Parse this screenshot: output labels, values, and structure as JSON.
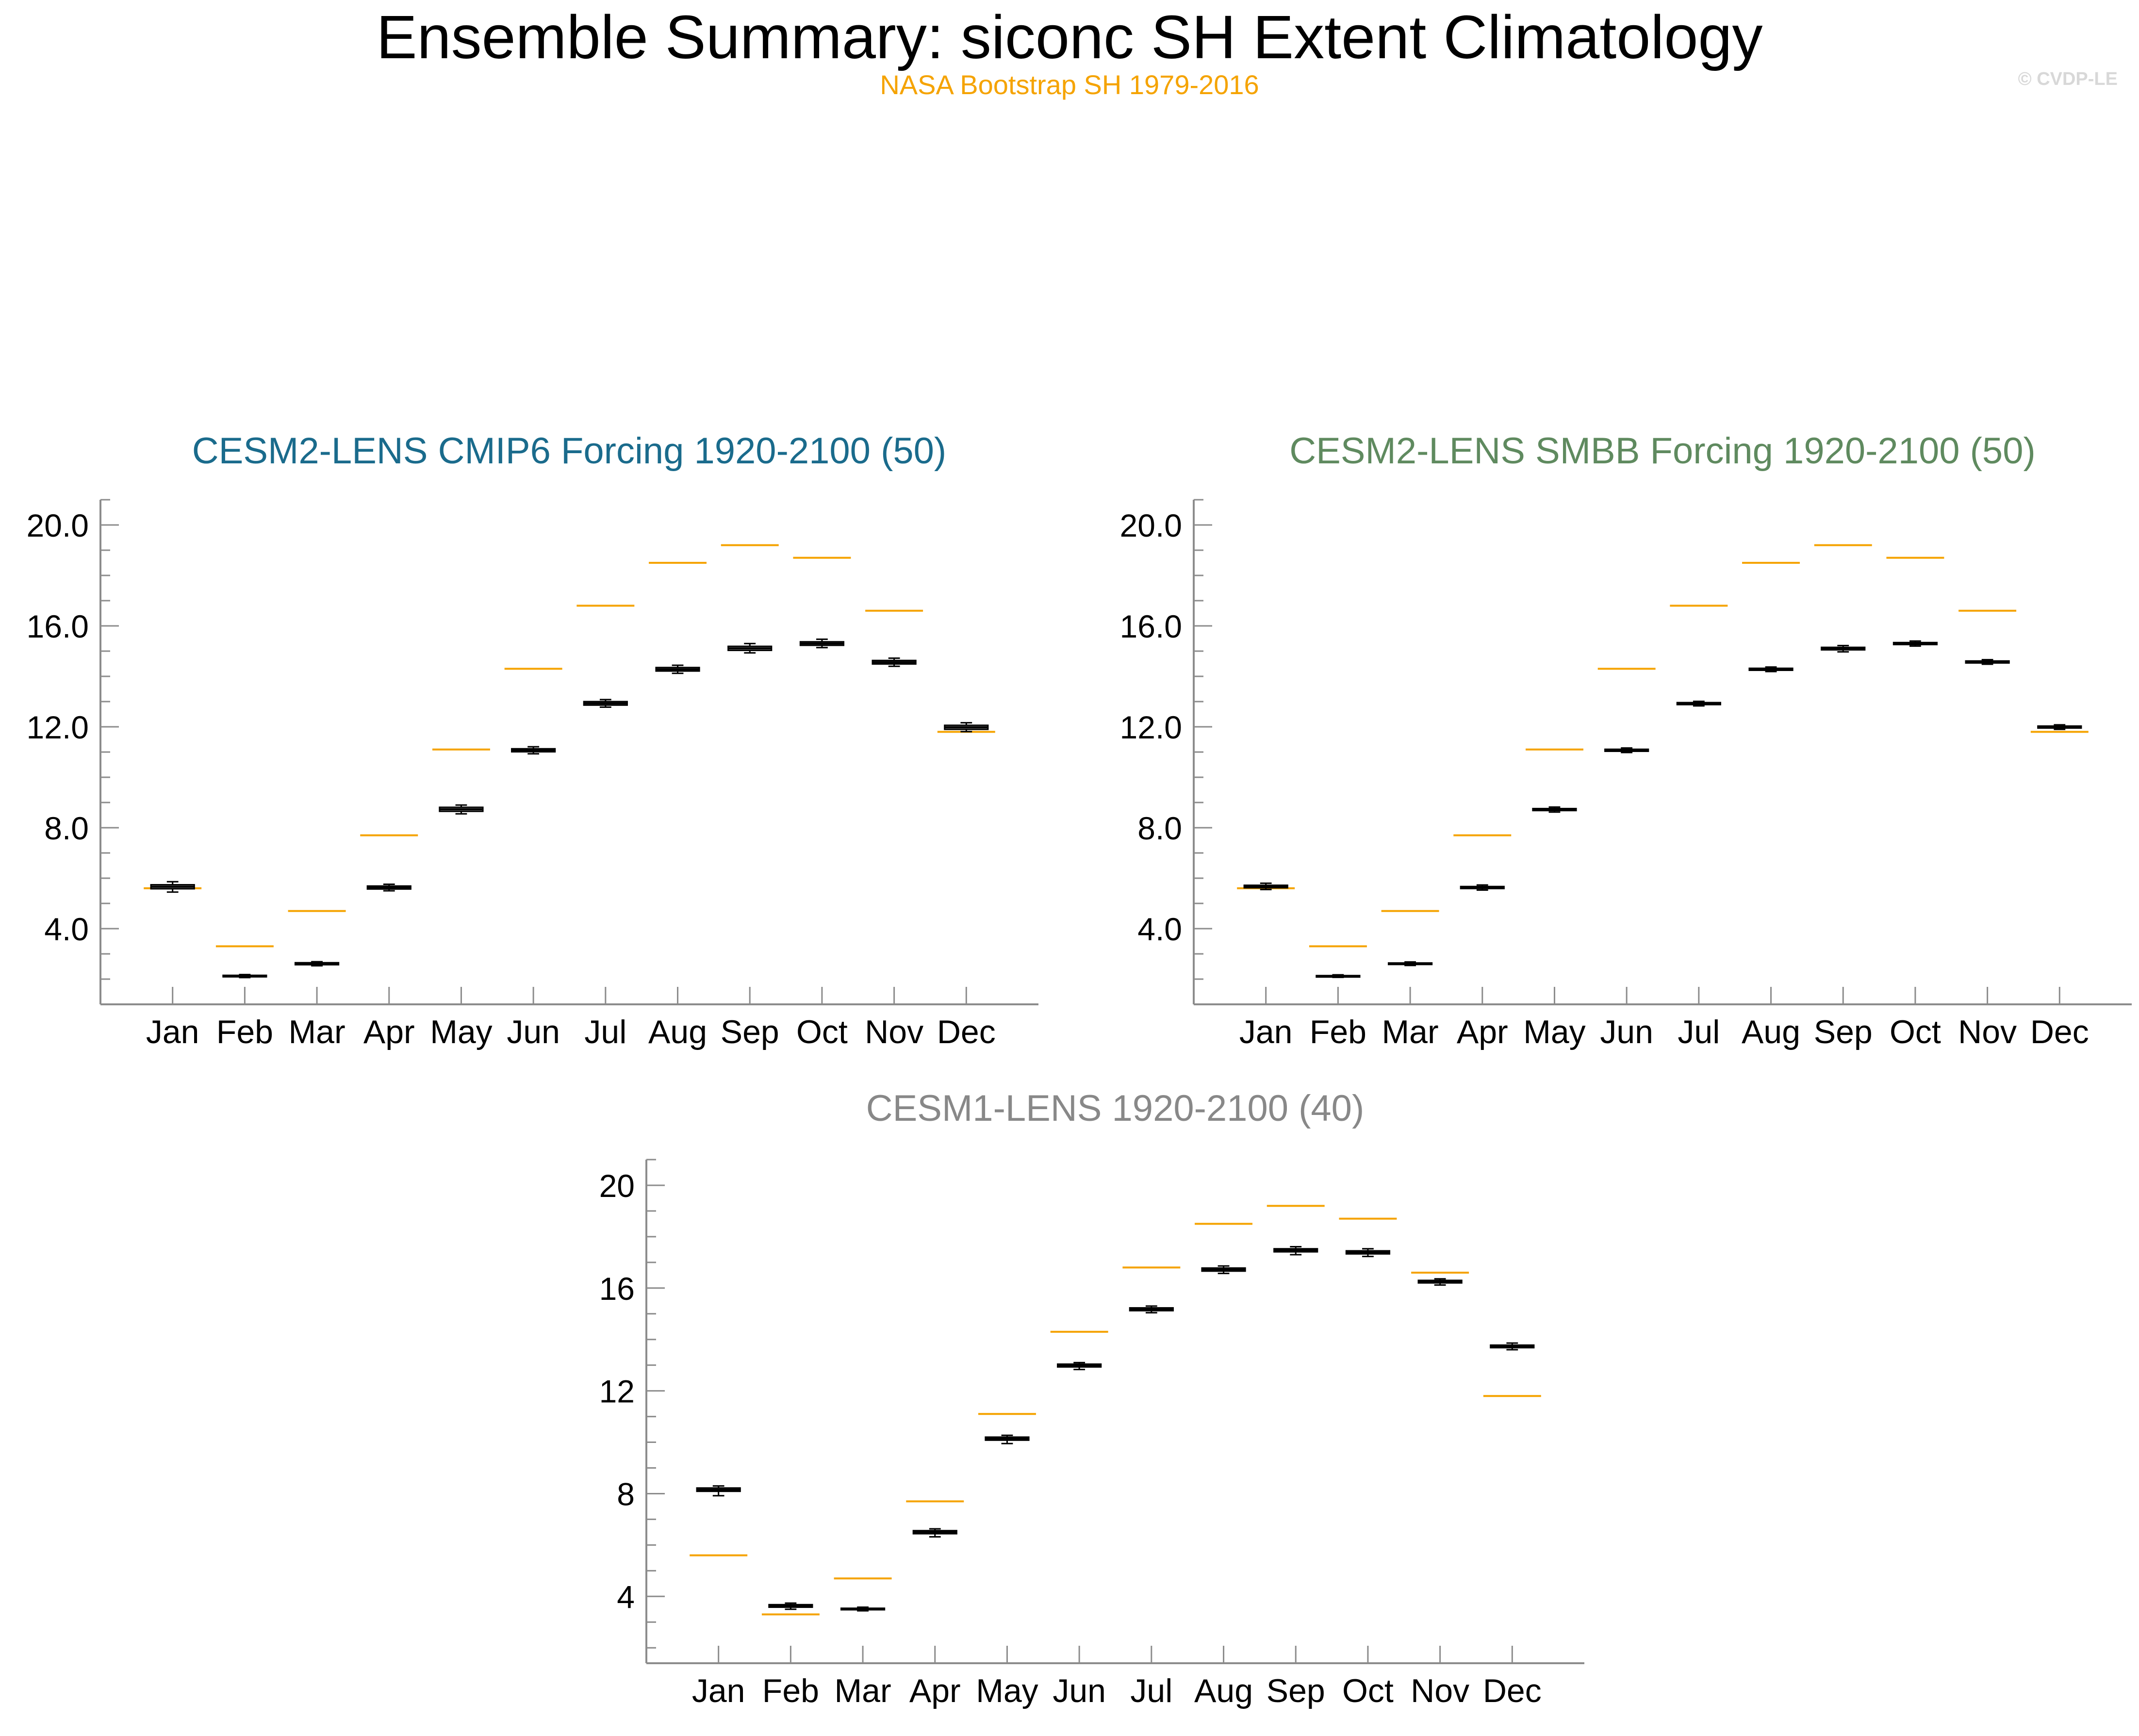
{
  "title": "Ensemble Summary: siconc SH Extent Climatology",
  "subtitle": "NASA Bootstrap SH 1979-2016",
  "copyright": "© CVDP-LE",
  "colors": {
    "observation": "#f5a300",
    "box_fill": "#8c8c8c",
    "box_edge": "#000000",
    "axis": "#8c8c8c"
  },
  "chart_data": [
    {
      "type": "box",
      "title": "CESM2-LENS CMIP6 Forcing 1920-2100 (50)",
      "title_color": "#1a6b8c",
      "categories": [
        "Jan",
        "Feb",
        "Mar",
        "Apr",
        "May",
        "Jun",
        "Jul",
        "Aug",
        "Sep",
        "Oct",
        "Nov",
        "Dec"
      ],
      "yticks": [
        "4.0",
        "8.0",
        "12.0",
        "16.0",
        "20.0"
      ],
      "ylim": [
        1.0,
        21.0
      ],
      "observation": [
        5.6,
        3.3,
        4.7,
        7.7,
        11.1,
        14.3,
        16.8,
        18.5,
        19.2,
        18.7,
        16.6,
        11.8
      ],
      "ensemble": [
        {
          "min": 5.45,
          "q1": 5.58,
          "median": 5.66,
          "q3": 5.74,
          "max": 5.86
        },
        {
          "min": 2.06,
          "q1": 2.09,
          "median": 2.12,
          "q3": 2.15,
          "max": 2.18
        },
        {
          "min": 2.53,
          "q1": 2.57,
          "median": 2.61,
          "q3": 2.65,
          "max": 2.69
        },
        {
          "min": 5.5,
          "q1": 5.57,
          "median": 5.63,
          "q3": 5.69,
          "max": 5.76
        },
        {
          "min": 8.55,
          "q1": 8.65,
          "median": 8.73,
          "q3": 8.81,
          "max": 8.9
        },
        {
          "min": 10.93,
          "q1": 11.01,
          "median": 11.07,
          "q3": 11.13,
          "max": 11.21
        },
        {
          "min": 12.78,
          "q1": 12.86,
          "median": 12.93,
          "q3": 13.0,
          "max": 13.08
        },
        {
          "min": 14.12,
          "q1": 14.21,
          "median": 14.28,
          "q3": 14.35,
          "max": 14.44
        },
        {
          "min": 14.93,
          "q1": 15.03,
          "median": 15.11,
          "q3": 15.19,
          "max": 15.3
        },
        {
          "min": 15.14,
          "q1": 15.23,
          "median": 15.3,
          "q3": 15.37,
          "max": 15.47
        },
        {
          "min": 14.4,
          "q1": 14.49,
          "median": 14.56,
          "q3": 14.63,
          "max": 14.72
        },
        {
          "min": 11.81,
          "q1": 11.9,
          "median": 11.98,
          "q3": 12.06,
          "max": 12.16
        }
      ]
    },
    {
      "type": "box",
      "title": "CESM2-LENS SMBB Forcing 1920-2100 (50)",
      "title_color": "#5f8a5f",
      "categories": [
        "Jan",
        "Feb",
        "Mar",
        "Apr",
        "May",
        "Jun",
        "Jul",
        "Aug",
        "Sep",
        "Oct",
        "Nov",
        "Dec"
      ],
      "yticks": [
        "4.0",
        "8.0",
        "12.0",
        "16.0",
        "20.0"
      ],
      "ylim": [
        1.0,
        21.0
      ],
      "observation": [
        5.6,
        3.3,
        4.7,
        7.7,
        11.1,
        14.3,
        16.8,
        18.5,
        19.2,
        18.7,
        16.6,
        11.8
      ],
      "ensemble": [
        {
          "min": 5.55,
          "q1": 5.62,
          "median": 5.67,
          "q3": 5.72,
          "max": 5.8
        },
        {
          "min": 2.07,
          "q1": 2.1,
          "median": 2.12,
          "q3": 2.14,
          "max": 2.17
        },
        {
          "min": 2.54,
          "q1": 2.58,
          "median": 2.61,
          "q3": 2.64,
          "max": 2.68
        },
        {
          "min": 5.53,
          "q1": 5.59,
          "median": 5.63,
          "q3": 5.67,
          "max": 5.73
        },
        {
          "min": 8.62,
          "q1": 8.68,
          "median": 8.72,
          "q3": 8.76,
          "max": 8.82
        },
        {
          "min": 10.98,
          "q1": 11.03,
          "median": 11.07,
          "q3": 11.11,
          "max": 11.16
        },
        {
          "min": 12.83,
          "q1": 12.88,
          "median": 12.92,
          "q3": 12.96,
          "max": 13.01
        },
        {
          "min": 14.19,
          "q1": 14.24,
          "median": 14.28,
          "q3": 14.32,
          "max": 14.37
        },
        {
          "min": 14.97,
          "q1": 15.05,
          "median": 15.1,
          "q3": 15.15,
          "max": 15.22
        },
        {
          "min": 15.2,
          "q1": 15.26,
          "median": 15.3,
          "q3": 15.34,
          "max": 15.4
        },
        {
          "min": 14.48,
          "q1": 14.53,
          "median": 14.57,
          "q3": 14.61,
          "max": 14.66
        },
        {
          "min": 11.9,
          "q1": 11.95,
          "median": 11.99,
          "q3": 12.03,
          "max": 12.08
        }
      ]
    },
    {
      "type": "box",
      "title": "CESM1-LENS 1920-2100 (40)",
      "title_color": "#888888",
      "categories": [
        "Jan",
        "Feb",
        "Mar",
        "Apr",
        "May",
        "Jun",
        "Jul",
        "Aug",
        "Sep",
        "Oct",
        "Nov",
        "Dec"
      ],
      "yticks": [
        "4",
        "8",
        "12",
        "16",
        "20"
      ],
      "ylim": [
        1.4,
        21.0
      ],
      "observation": [
        5.6,
        3.3,
        4.7,
        7.7,
        11.1,
        14.3,
        16.8,
        18.5,
        19.2,
        18.7,
        16.6,
        11.8
      ],
      "ensemble": [
        {
          "min": 7.92,
          "q1": 8.09,
          "median": 8.15,
          "q3": 8.22,
          "max": 8.3
        },
        {
          "min": 3.5,
          "q1": 3.58,
          "median": 3.63,
          "q3": 3.68,
          "max": 3.74
        },
        {
          "min": 3.44,
          "q1": 3.48,
          "median": 3.51,
          "q3": 3.54,
          "max": 3.58
        },
        {
          "min": 6.32,
          "q1": 6.44,
          "median": 6.5,
          "q3": 6.56,
          "max": 6.63
        },
        {
          "min": 9.95,
          "q1": 10.08,
          "median": 10.14,
          "q3": 10.2,
          "max": 10.27
        },
        {
          "min": 12.83,
          "q1": 12.93,
          "median": 12.99,
          "q3": 13.04,
          "max": 13.1
        },
        {
          "min": 15.04,
          "q1": 15.12,
          "median": 15.18,
          "q3": 15.23,
          "max": 15.3
        },
        {
          "min": 16.57,
          "q1": 16.66,
          "median": 16.72,
          "q3": 16.78,
          "max": 16.86
        },
        {
          "min": 17.3,
          "q1": 17.41,
          "median": 17.47,
          "q3": 17.53,
          "max": 17.61
        },
        {
          "min": 17.23,
          "q1": 17.33,
          "median": 17.39,
          "q3": 17.45,
          "max": 17.53
        },
        {
          "min": 16.12,
          "q1": 16.2,
          "median": 16.25,
          "q3": 16.3,
          "max": 16.36
        },
        {
          "min": 13.6,
          "q1": 13.68,
          "median": 13.73,
          "q3": 13.78,
          "max": 13.86
        }
      ]
    }
  ]
}
